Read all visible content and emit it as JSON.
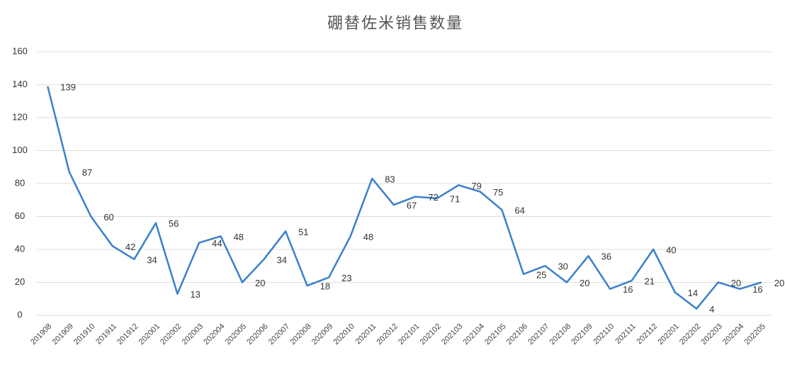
{
  "chart_data": {
    "type": "line",
    "title": "硼替佐米销售数量",
    "categories": [
      "201908",
      "201909",
      "201910",
      "201911",
      "201912",
      "202001",
      "202002",
      "202003",
      "202004",
      "202005",
      "202006",
      "202007",
      "202008",
      "202009",
      "202010",
      "202011",
      "202012",
      "202101",
      "202102",
      "202103",
      "202104",
      "202105",
      "202106",
      "202107",
      "202108",
      "202109",
      "202110",
      "202111",
      "202112",
      "202201",
      "202202",
      "202203",
      "202204",
      "202205"
    ],
    "series": [
      {
        "name": "销售数量",
        "color": "#3a80cc",
        "values": [
          139,
          87,
          60,
          42,
          34,
          56,
          13,
          44,
          48,
          20,
          34,
          51,
          18,
          23,
          48,
          83,
          67,
          72,
          71,
          79,
          75,
          64,
          25,
          30,
          20,
          36,
          16,
          21,
          40,
          14,
          4,
          20,
          16,
          20
        ]
      }
    ],
    "ylim": [
      0,
      160
    ],
    "yticks": [
      0,
      20,
      40,
      60,
      80,
      100,
      120,
      140,
      160
    ],
    "grid": true,
    "data_labels": true
  }
}
